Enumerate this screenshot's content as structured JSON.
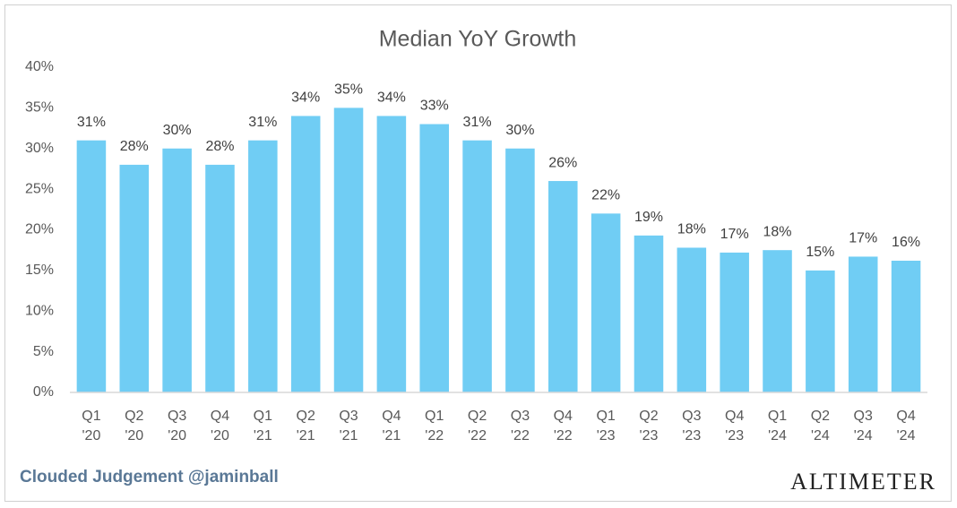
{
  "chart_data": {
    "type": "bar",
    "title": "Median YoY Growth",
    "categories": [
      "Q1 '20",
      "Q2 '20",
      "Q3 '20",
      "Q4 '20",
      "Q1 '21",
      "Q2 '21",
      "Q3 '21",
      "Q4 '21",
      "Q1 '22",
      "Q2 '22",
      "Q3 '22",
      "Q4 '22",
      "Q1 '23",
      "Q2 '23",
      "Q3 '23",
      "Q4 '23",
      "Q1 '24",
      "Q2 '24",
      "Q3 '24",
      "Q4 '24"
    ],
    "values": [
      31,
      28,
      30,
      28,
      31,
      34,
      35,
      34,
      33,
      31,
      30,
      26,
      22,
      19.3,
      17.8,
      17.2,
      17.5,
      15,
      16.7,
      16.2
    ],
    "value_labels": [
      "31%",
      "28%",
      "30%",
      "28%",
      "31%",
      "34%",
      "35%",
      "34%",
      "33%",
      "31%",
      "30%",
      "26%",
      "22%",
      "19%",
      "18%",
      "17%",
      "18%",
      "15%",
      "17%",
      "16%"
    ],
    "color": "#70cdf4",
    "ylim": [
      0,
      40
    ],
    "yticks": [
      {
        "value": 0,
        "label": "0%"
      },
      {
        "value": 5,
        "label": "5%"
      },
      {
        "value": 10,
        "label": "10%"
      },
      {
        "value": 15,
        "label": "15%"
      },
      {
        "value": 20,
        "label": "20%"
      },
      {
        "value": 25,
        "label": "25%"
      },
      {
        "value": 30,
        "label": "30%"
      },
      {
        "value": 35,
        "label": "35%"
      },
      {
        "value": 40,
        "label": "40%"
      }
    ],
    "grid": false,
    "source_note": "Clouded Judgement @jaminball",
    "brand": "Altimeter"
  }
}
